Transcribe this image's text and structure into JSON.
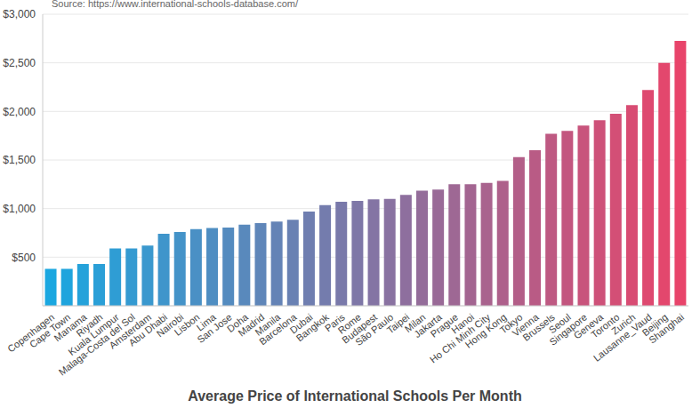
{
  "chart_data": {
    "type": "bar",
    "title": "Average Price of International Schools Per Month",
    "annotations": [
      "Source: https://www.international-schools-database.com/"
    ],
    "categories": [
      "Copenhagen",
      "Cape Town",
      "Manama",
      "Riyadh",
      "Kuala Lumpur",
      "Malaga-Costa del Sol",
      "Amsterdam",
      "Abu Dhabi",
      "Nairobi",
      "Lisbon",
      "Lima",
      "San Jose",
      "Doha",
      "Madrid",
      "Manila",
      "Barcelona",
      "Dubai",
      "Bangkok",
      "Paris",
      "Rome",
      "Budapest",
      "São Paulo",
      "Taipei",
      "Milan",
      "Jakarta",
      "Prague",
      "Hanoi",
      "Ho Chi Minh City",
      "Hong Kong",
      "Tokyo",
      "Vienna",
      "Brussels",
      "Seoul",
      "Singapore",
      "Geneva",
      "Toronto",
      "Zurich",
      "Lausanne_Vaud",
      "Beijing",
      "Shanghai"
    ],
    "values": [
      380,
      380,
      430,
      430,
      590,
      590,
      620,
      740,
      760,
      790,
      800,
      805,
      835,
      850,
      866,
      885,
      970,
      1035,
      1070,
      1080,
      1095,
      1100,
      1140,
      1185,
      1195,
      1250,
      1250,
      1265,
      1285,
      1530,
      1600,
      1770,
      1800,
      1855,
      1910,
      1975,
      2065,
      2220,
      2500,
      2725
    ],
    "colors": [
      "#1aa7e0",
      "#1fa4dd",
      "#25a2da",
      "#2a9fd7",
      "#2f9dd4",
      "#349ad1",
      "#3a98ce",
      "#3f95cb",
      "#4493c8",
      "#4a90c5",
      "#4f8ec2",
      "#548bbf",
      "#5989bc",
      "#5f86b9",
      "#6483b6",
      "#6981b3",
      "#6f7eb0",
      "#747cad",
      "#7979aa",
      "#7e77a7",
      "#8474a4",
      "#8972a1",
      "#8e6f9e",
      "#946d9a",
      "#996a97",
      "#9e6894",
      "#a36591",
      "#a9638e",
      "#ae608b",
      "#b35e88",
      "#b95b85",
      "#be5982",
      "#c3567f",
      "#c8547c",
      "#ce5179",
      "#d34f76",
      "#d84c73",
      "#de4970",
      "#e3476d",
      "#e8446a"
    ],
    "ylim": [
      0,
      3000
    ],
    "yticks": [
      {
        "value": 500,
        "label": "$500"
      },
      {
        "value": 1000,
        "label": "$1,000"
      },
      {
        "value": 1500,
        "label": "$1,500"
      },
      {
        "value": 2000,
        "label": "$2,000"
      },
      {
        "value": 2500,
        "label": "$2,500"
      },
      {
        "value": 3000,
        "label": "$3,000"
      }
    ],
    "grid": true
  }
}
